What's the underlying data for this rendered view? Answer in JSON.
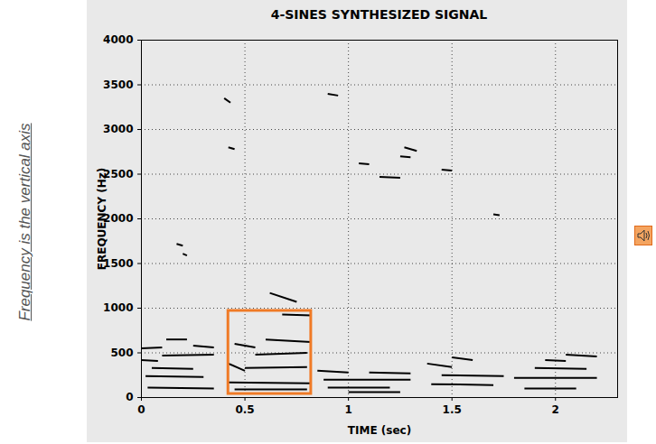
{
  "chart_data": {
    "type": "spectrogram",
    "title": "4-SINES SYNTHESIZED SIGNAL",
    "x_label": "TIME (sec)",
    "y_label": "FREQUENCY (Hz)",
    "side_note": "Frequency is the vertical axis",
    "xlim": [
      0,
      2.3
    ],
    "ylim": [
      0,
      4000
    ],
    "xticks": [
      0,
      0.5,
      1,
      1.5,
      2
    ],
    "yticks": [
      0,
      500,
      1000,
      1500,
      2000,
      2500,
      3000,
      3500,
      4000
    ],
    "grid": true,
    "color": "#000000",
    "segments": {
      "t_start": [
        0.03,
        0.02,
        0.05,
        0.1,
        0.12,
        0.0,
        0.25,
        0.0,
        0.42,
        0.45,
        0.5,
        0.55,
        0.6,
        0.68,
        0.45,
        0.62,
        0.42,
        0.88,
        0.85,
        0.9,
        1.0,
        1.1,
        1.4,
        1.45,
        1.5,
        1.38,
        1.85,
        1.8,
        1.9,
        1.95,
        2.05,
        0.17,
        0.2,
        1.05,
        1.15,
        1.27,
        1.25,
        0.9,
        1.45,
        1.7,
        0.4,
        0.42
      ],
      "t_end": [
        0.35,
        0.3,
        0.25,
        0.35,
        0.22,
        0.08,
        0.35,
        0.1,
        0.82,
        0.8,
        0.8,
        0.8,
        0.82,
        0.82,
        0.55,
        0.75,
        0.5,
        1.3,
        1.0,
        1.2,
        1.25,
        1.3,
        1.7,
        1.75,
        1.6,
        1.5,
        2.1,
        2.2,
        2.15,
        2.05,
        2.2,
        0.2,
        0.22,
        1.1,
        1.25,
        1.33,
        1.3,
        0.95,
        1.5,
        1.73,
        0.43,
        0.45
      ],
      "f_start": [
        110,
        240,
        330,
        470,
        650,
        420,
        580,
        550,
        170,
        90,
        330,
        480,
        650,
        930,
        600,
        1170,
        380,
        200,
        300,
        110,
        60,
        280,
        150,
        250,
        450,
        380,
        100,
        220,
        330,
        420,
        480,
        1720,
        1610,
        2620,
        2470,
        2800,
        2700,
        3400,
        2550,
        2050,
        3350,
        2800
      ],
      "f_end": [
        100,
        230,
        320,
        480,
        650,
        410,
        560,
        560,
        160,
        90,
        340,
        500,
        620,
        920,
        560,
        1070,
        300,
        200,
        280,
        110,
        60,
        270,
        140,
        240,
        420,
        340,
        100,
        220,
        320,
        410,
        460,
        1700,
        1590,
        2610,
        2460,
        2760,
        2690,
        3380,
        2540,
        2040,
        3300,
        2780
      ]
    },
    "highlight": {
      "x": [
        0.42,
        0.82
      ],
      "y": [
        40,
        970
      ],
      "color": "#f07a26"
    }
  }
}
